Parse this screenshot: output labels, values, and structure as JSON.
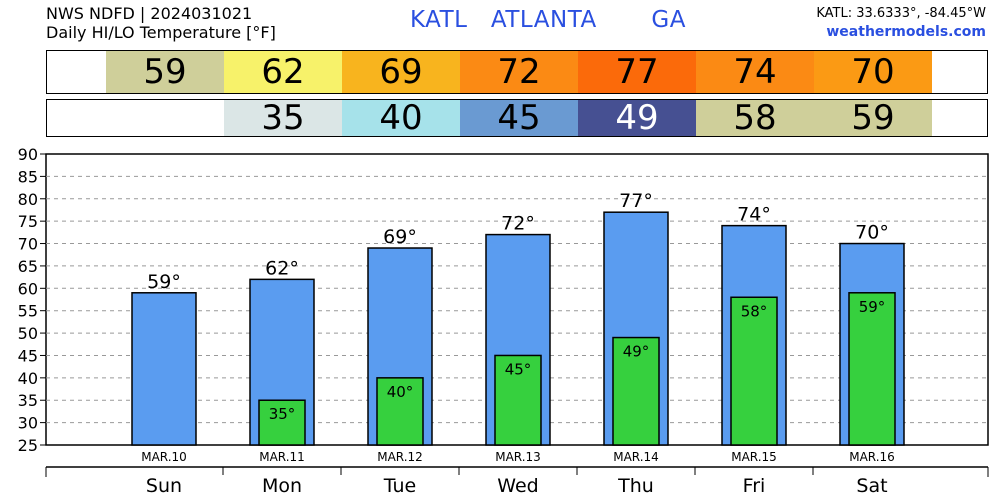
{
  "header": {
    "line1": "NWS NDFD | 2024031021",
    "line2": "Daily HI/LO Temperature [°F]",
    "title": "KATL   ATLANTA       GA",
    "coords": "KATL: 33.6333°, -84.45°W",
    "site": "weathermodels.com"
  },
  "hi_strip": [
    {
      "value": "59",
      "color": "#cfcf9a",
      "text_color": "#000000"
    },
    {
      "value": "62",
      "color": "#f7f26a",
      "text_color": "#000000"
    },
    {
      "value": "69",
      "color": "#f8b41e",
      "text_color": "#000000"
    },
    {
      "value": "72",
      "color": "#fb8a14",
      "text_color": "#000000"
    },
    {
      "value": "77",
      "color": "#fb6a0a",
      "text_color": "#000000"
    },
    {
      "value": "74",
      "color": "#fb8a14",
      "text_color": "#000000"
    },
    {
      "value": "70",
      "color": "#fb9a14",
      "text_color": "#000000"
    }
  ],
  "lo_strip": [
    {
      "value": "",
      "color": "#ffffff",
      "text_color": "#000000"
    },
    {
      "value": "35",
      "color": "#dbe6e6",
      "text_color": "#000000"
    },
    {
      "value": "40",
      "color": "#a6e2ea",
      "text_color": "#000000"
    },
    {
      "value": "45",
      "color": "#6a9ad2",
      "text_color": "#000000"
    },
    {
      "value": "49",
      "color": "#465092",
      "text_color": "#ffffff"
    },
    {
      "value": "58",
      "color": "#cfcf9a",
      "text_color": "#000000"
    },
    {
      "value": "59",
      "color": "#cfcf9a",
      "text_color": "#000000"
    }
  ],
  "chart_data": {
    "type": "bar",
    "categories": [
      "Sun",
      "Mon",
      "Tue",
      "Wed",
      "Thu",
      "Fri",
      "Sat"
    ],
    "dates": [
      "MAR.10",
      "MAR.11",
      "MAR.12",
      "MAR.13",
      "MAR.14",
      "MAR.15",
      "MAR.16"
    ],
    "series": [
      {
        "values": [
          59,
          62,
          69,
          72,
          77,
          74,
          70
        ],
        "labels": [
          "59°",
          "62°",
          "69°",
          "72°",
          "77°",
          "74°",
          "70°"
        ],
        "color": "#5a9cf0"
      },
      {
        "values": [
          null,
          35,
          40,
          45,
          49,
          58,
          59
        ],
        "labels": [
          "",
          "35°",
          "40°",
          "45°",
          "49°",
          "58°",
          "59°"
        ],
        "color": "#36d03e"
      }
    ],
    "yticks": [
      25,
      30,
      35,
      40,
      45,
      50,
      55,
      60,
      65,
      70,
      75,
      80,
      85,
      90
    ],
    "ylim": [
      25,
      90
    ],
    "grid": true
  }
}
